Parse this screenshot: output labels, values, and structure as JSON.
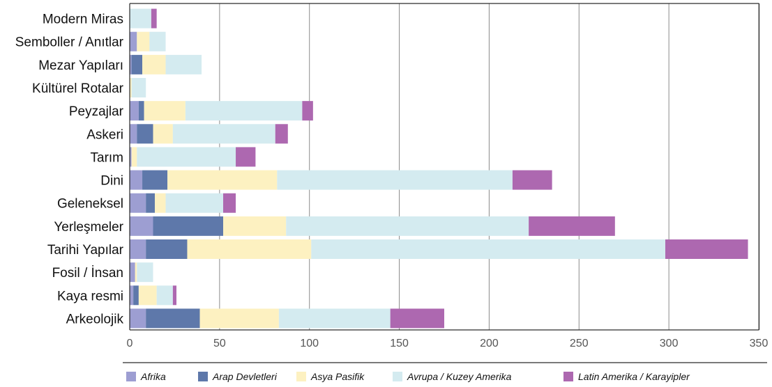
{
  "chart_data": {
    "type": "bar",
    "orientation": "horizontal",
    "stacked": true,
    "title": "",
    "xlabel": "",
    "ylabel": "",
    "xlim": [
      0,
      350
    ],
    "x_ticks": [
      0,
      50,
      100,
      150,
      200,
      250,
      300,
      350
    ],
    "x_tick_labels": [
      "0",
      "50",
      "100",
      "150",
      "200",
      "250",
      "300",
      "350"
    ],
    "grid": "vertical",
    "legend_position": "bottom",
    "categories": [
      "Modern Miras",
      "Semboller / Anıtlar",
      "Mezar Yapıları",
      "Kültürel Rotalar",
      "Peyzajlar",
      "Askeri",
      "Tarım",
      "Dini",
      "Geleneksel",
      "Yerleşmeler",
      "Tarihi Yapılar",
      "Fosil / İnsan",
      "Kaya resmi",
      "Arkeolojik"
    ],
    "series": [
      {
        "name": "Afrika",
        "color": "#9d9ed2",
        "values": [
          0,
          4,
          1,
          0,
          5,
          4,
          1,
          7,
          9,
          13,
          9,
          3,
          2,
          9
        ]
      },
      {
        "name": "Arap Devletleri",
        "color": "#5e78aa",
        "values": [
          0,
          0,
          6,
          0,
          3,
          9,
          0,
          14,
          5,
          39,
          23,
          0,
          3,
          30
        ]
      },
      {
        "name": "Asya Pasifik",
        "color": "#fdf1c1",
        "values": [
          0,
          7,
          13,
          1,
          23,
          11,
          3,
          61,
          6,
          35,
          69,
          1,
          10,
          44
        ]
      },
      {
        "name": "Avrupa / Kuzey Amerika",
        "color": "#d4ebf0",
        "values": [
          12,
          9,
          20,
          8,
          65,
          57,
          55,
          131,
          32,
          135,
          197,
          9,
          9,
          62
        ]
      },
      {
        "name": "Latin Amerika / Karayipler",
        "color": "#ad68b0",
        "values": [
          3,
          0,
          0,
          0,
          6,
          7,
          11,
          22,
          7,
          48,
          46,
          0,
          2,
          30
        ]
      }
    ]
  }
}
